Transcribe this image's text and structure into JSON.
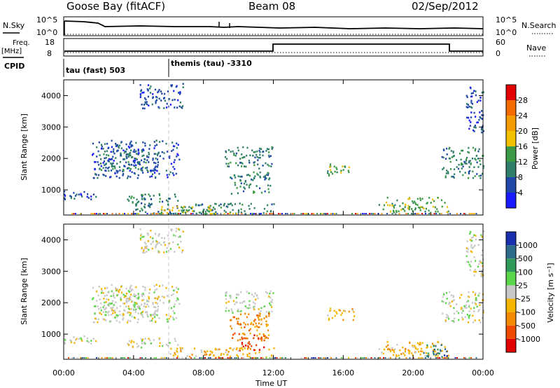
{
  "header": {
    "station": "Goose Bay (fitACF)",
    "beam": "Beam 08",
    "date": "02/Sep/2012"
  },
  "strip_charts": {
    "nsky_label": "N.Sky",
    "nsky_ticks": [
      "10^5",
      "10^0"
    ],
    "nsearch_label": "N.Search",
    "nsearch_ticks": [
      "10^5",
      "10^0"
    ],
    "freq_label": "Freq.",
    "freq_unit": "[MHz]",
    "freq_ticks": [
      "18",
      "8"
    ],
    "nave_label": "Nave",
    "nave_ticks": [
      "60",
      "0"
    ],
    "cpid_label": "CPID"
  },
  "cpid_segments": [
    {
      "label": "tau (fast) 503",
      "start_hour": 0,
      "end_hour": 6
    },
    {
      "label": "themis (tau) -3310",
      "start_hour": 6,
      "end_hour": 24
    }
  ],
  "time_axis": {
    "label": "Time UT",
    "ticks": [
      "00:00",
      "04:00",
      "08:00",
      "12:00",
      "16:00",
      "20:00",
      "00:00"
    ]
  },
  "power_colorbar": {
    "label": "Power [dB]",
    "ticks": [
      "4",
      "8",
      "12",
      "16",
      "20",
      "24",
      "28"
    ],
    "colors": [
      "#1a1aff",
      "#1f48a8",
      "#2f7f6a",
      "#3c9a46",
      "#f2c100",
      "#f59a00",
      "#f26a00",
      "#e30000"
    ]
  },
  "velocity_colorbar": {
    "label": "Velocity [m s⁻¹]",
    "ticks": [
      "1000",
      "500",
      "100",
      "25",
      "-25",
      "-100",
      "-500",
      "-1000"
    ],
    "colors": [
      "#1a2fb0",
      "#2f6b8a",
      "#2f9a5a",
      "#5ad64a",
      "#c8c8c8",
      "#f5b400",
      "#f28a00",
      "#f04a00",
      "#e00000"
    ]
  },
  "chart_data": [
    {
      "type": "heatmap",
      "title": "Power",
      "xlabel": "Time UT",
      "ylabel": "Slant Range [km]",
      "xlim": [
        0,
        24
      ],
      "ylim": [
        200,
        4500
      ],
      "yticks": [
        1000,
        2000,
        3000,
        4000
      ],
      "regions": [
        {
          "t0": 1.6,
          "t1": 6.6,
          "r0": 1400,
          "r1": 2600,
          "level": 1
        },
        {
          "t0": 2.0,
          "t1": 4.8,
          "r0": 1600,
          "r1": 2300,
          "level": 2
        },
        {
          "t0": 0.0,
          "t1": 2.0,
          "r0": 700,
          "r1": 1000,
          "level": 1
        },
        {
          "t0": 3.2,
          "t1": 6.5,
          "r0": 600,
          "r1": 900,
          "level": 2
        },
        {
          "t0": 4.0,
          "t1": 12.0,
          "r0": 250,
          "r1": 600,
          "level": 2
        },
        {
          "t0": 5.5,
          "t1": 8.5,
          "r0": 250,
          "r1": 500,
          "level": 4
        },
        {
          "t0": 9.2,
          "t1": 12.0,
          "r0": 1700,
          "r1": 2400,
          "level": 2
        },
        {
          "t0": 9.5,
          "t1": 11.8,
          "r0": 900,
          "r1": 1600,
          "level": 2
        },
        {
          "t0": 15.0,
          "t1": 16.6,
          "r0": 1450,
          "r1": 1850,
          "level": 3
        },
        {
          "t0": 18.0,
          "t1": 22.0,
          "r0": 300,
          "r1": 800,
          "level": 3
        },
        {
          "t0": 21.6,
          "t1": 24.0,
          "r0": 1400,
          "r1": 2400,
          "level": 2
        },
        {
          "t0": 23.0,
          "t1": 24.0,
          "r0": 2800,
          "r1": 4300,
          "level": 1
        },
        {
          "t0": 4.3,
          "t1": 6.8,
          "r0": 3600,
          "r1": 4400,
          "level": 1
        }
      ]
    },
    {
      "type": "heatmap",
      "title": "Velocity",
      "xlabel": "Time UT",
      "ylabel": "Slant Range [km]",
      "xlim": [
        0,
        24
      ],
      "ylim": [
        200,
        4500
      ],
      "yticks": [
        1000,
        2000,
        3000,
        4000
      ],
      "regions": [
        {
          "t0": 1.6,
          "t1": 6.6,
          "r0": 1400,
          "r1": 2600,
          "level": 4
        },
        {
          "t0": 2.0,
          "t1": 4.8,
          "r0": 1600,
          "r1": 2300,
          "level": 4
        },
        {
          "t0": 0.0,
          "t1": 2.0,
          "r0": 700,
          "r1": 1000,
          "level": 4
        },
        {
          "t0": 3.2,
          "t1": 6.5,
          "r0": 600,
          "r1": 900,
          "level": 4
        },
        {
          "t0": 6.0,
          "t1": 12.0,
          "r0": 250,
          "r1": 600,
          "level": 5
        },
        {
          "t0": 9.2,
          "t1": 12.0,
          "r0": 1700,
          "r1": 2400,
          "level": 4
        },
        {
          "t0": 9.5,
          "t1": 11.8,
          "r0": 800,
          "r1": 1700,
          "level": 6
        },
        {
          "t0": 10.0,
          "t1": 11.5,
          "r0": 500,
          "r1": 1000,
          "level": 7
        },
        {
          "t0": 15.0,
          "t1": 16.6,
          "r0": 1450,
          "r1": 1850,
          "level": 5
        },
        {
          "t0": 18.0,
          "t1": 22.0,
          "r0": 300,
          "r1": 800,
          "level": 5
        },
        {
          "t0": 20.5,
          "t1": 22.0,
          "r0": 300,
          "r1": 700,
          "level": 1
        },
        {
          "t0": 21.6,
          "t1": 24.0,
          "r0": 1400,
          "r1": 2400,
          "level": 4
        },
        {
          "t0": 23.0,
          "t1": 24.0,
          "r0": 2800,
          "r1": 4300,
          "level": 4
        },
        {
          "t0": 4.3,
          "t1": 6.8,
          "r0": 3600,
          "r1": 4400,
          "level": 4
        }
      ]
    }
  ]
}
